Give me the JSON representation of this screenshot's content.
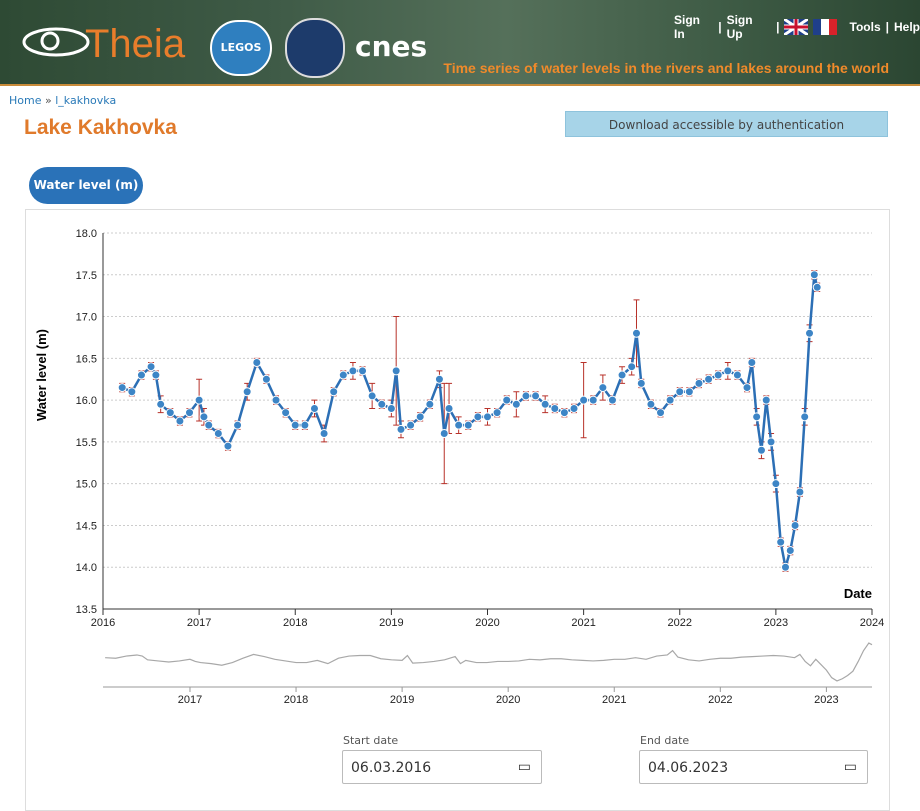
{
  "header": {
    "logo": "Theia",
    "partner_1": "LEGOS",
    "partner_2": "cnes",
    "links": [
      "Sign In",
      "Sign Up",
      "Tools",
      "Help"
    ],
    "tagline": "Time series of water levels in the rivers and lakes around the world"
  },
  "breadcrumb": {
    "items": [
      "Home",
      "l_kakhovka"
    ],
    "separator": "»"
  },
  "title": "Lake Kakhovka",
  "download_button": "Download accessible by authentication",
  "tab": "Water level (m)",
  "chart_data": [
    {
      "type": "line",
      "x_label": "Date",
      "y_label": "Water level (m)",
      "xlim": [
        2016,
        2024
      ],
      "xticks": [
        2016,
        2017,
        2018,
        2019,
        2020,
        2021,
        2022,
        2023,
        2024
      ],
      "ylim": [
        13.5,
        18
      ],
      "yticks": [
        13.5,
        {
          "value": 14,
          "label": "14.0"
        },
        14.5,
        {
          "value": 15,
          "label": "15.0"
        },
        15.5,
        {
          "value": 16,
          "label": "16.0"
        },
        16.5,
        {
          "value": 17,
          "label": "17.0"
        },
        17.5,
        {
          "value": 18,
          "label": "18.0"
        }
      ],
      "grid": true,
      "color": "#2c6fb5",
      "marker_color": "#3d85c6",
      "error_color": "#b8322a",
      "x": [
        2016.2,
        2016.3,
        2016.4,
        2016.5,
        2016.55,
        2016.6,
        2016.7,
        2016.8,
        2016.9,
        2017.0,
        2017.05,
        2017.1,
        2017.2,
        2017.3,
        2017.4,
        2017.5,
        2017.6,
        2017.7,
        2017.8,
        2017.9,
        2018.0,
        2018.1,
        2018.2,
        2018.3,
        2018.4,
        2018.5,
        2018.6,
        2018.7,
        2018.8,
        2018.9,
        2019.0,
        2019.05,
        2019.1,
        2019.2,
        2019.3,
        2019.4,
        2019.5,
        2019.55,
        2019.6,
        2019.7,
        2019.8,
        2019.9,
        2020.0,
        2020.1,
        2020.2,
        2020.3,
        2020.4,
        2020.5,
        2020.6,
        2020.7,
        2020.8,
        2020.9,
        2021.0,
        2021.1,
        2021.2,
        2021.3,
        2021.4,
        2021.5,
        2021.55,
        2021.6,
        2021.7,
        2021.8,
        2021.9,
        2022.0,
        2022.1,
        2022.2,
        2022.3,
        2022.4,
        2022.5,
        2022.6,
        2022.7,
        2022.75,
        2022.8,
        2022.85,
        2022.9,
        2022.95,
        2023.0,
        2023.05,
        2023.1,
        2023.15,
        2023.2,
        2023.25,
        2023.3,
        2023.35,
        2023.4,
        2023.43
      ],
      "values": [
        16.15,
        16.1,
        16.3,
        16.4,
        16.3,
        15.95,
        15.85,
        15.75,
        15.85,
        16.0,
        15.8,
        15.7,
        15.6,
        15.45,
        15.7,
        16.1,
        16.45,
        16.25,
        16.0,
        15.85,
        15.7,
        15.7,
        15.9,
        15.6,
        16.1,
        16.3,
        16.35,
        16.35,
        16.05,
        15.95,
        15.9,
        16.35,
        15.65,
        15.7,
        15.8,
        15.95,
        16.25,
        15.6,
        15.9,
        15.7,
        15.7,
        15.8,
        15.8,
        15.85,
        16.0,
        15.95,
        16.05,
        16.05,
        15.95,
        15.9,
        15.85,
        15.9,
        16.0,
        16.0,
        16.15,
        16.0,
        16.3,
        16.4,
        16.8,
        16.2,
        15.95,
        15.85,
        16.0,
        16.1,
        16.1,
        16.2,
        16.25,
        16.3,
        16.35,
        16.3,
        16.15,
        16.45,
        15.8,
        15.4,
        16.0,
        15.5,
        15.0,
        14.3,
        14.0,
        14.2,
        14.5,
        14.9,
        15.8,
        16.8,
        17.5,
        17.35
      ],
      "errors": [
        0.05,
        0.05,
        0.05,
        0.05,
        0.05,
        0.1,
        0.05,
        0.05,
        0.05,
        0.25,
        0.1,
        0.05,
        0.05,
        0.05,
        0.05,
        0.1,
        0.05,
        0.05,
        0.05,
        0.05,
        0.05,
        0.05,
        0.1,
        0.1,
        0.05,
        0.05,
        0.1,
        0.05,
        0.15,
        0.05,
        0.1,
        0.65,
        0.1,
        0.05,
        0.05,
        0.05,
        0.1,
        0.6,
        0.3,
        0.1,
        0.05,
        0.05,
        0.1,
        0.05,
        0.05,
        0.15,
        0.05,
        0.05,
        0.1,
        0.05,
        0.05,
        0.05,
        0.45,
        0.05,
        0.15,
        0.05,
        0.1,
        0.1,
        0.4,
        0.05,
        0.05,
        0.05,
        0.05,
        0.05,
        0.05,
        0.05,
        0.05,
        0.05,
        0.1,
        0.05,
        0.05,
        0.05,
        0.1,
        0.1,
        0.05,
        0.1,
        0.1,
        0.05,
        0.05,
        0.05,
        0.05,
        0.05,
        0.1,
        0.1,
        0.05,
        0.05
      ]
    },
    {
      "type": "line",
      "xlim": [
        2016.18,
        2023.43
      ],
      "xticks": [
        2017,
        2018,
        2019,
        2020,
        2021,
        2022,
        2023
      ],
      "ylim": [
        13.9,
        17.6
      ],
      "color": "#a8a8a8"
    }
  ],
  "start_date": {
    "label": "Start date",
    "value": "06.03.2016"
  },
  "end_date": {
    "label": "End date",
    "value": "04.06.2023"
  }
}
